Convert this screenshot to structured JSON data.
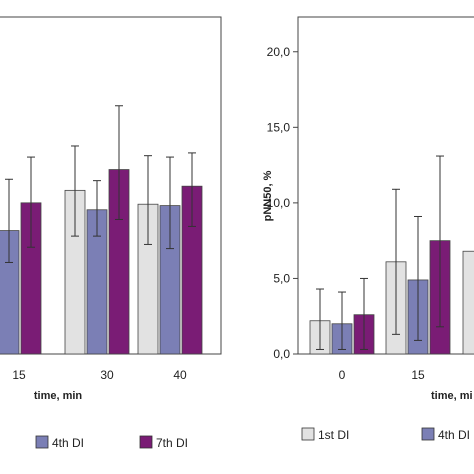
{
  "chart_data": [
    {
      "type": "bar",
      "categories": [
        "15",
        "30",
        "40"
      ],
      "xlabel": "time, min",
      "ylabel": "",
      "series": [
        {
          "name": "",
          "color": "#e2e2e2",
          "values": [
            9.9,
            11.8,
            10.8
          ],
          "err_hi": [
            12.5,
            15.0,
            14.3
          ],
          "err_lo": [
            7.5,
            8.5,
            7.9
          ]
        },
        {
          "name": "4th DI",
          "color": "#7b7fb5",
          "values": [
            8.9,
            10.4,
            10.7
          ],
          "err_hi": [
            12.6,
            12.5,
            14.2
          ],
          "err_lo": [
            6.6,
            8.5,
            7.6
          ]
        },
        {
          "name": "7th DI",
          "color": "#7a1c75",
          "values": [
            10.9,
            13.3,
            12.1
          ],
          "err_hi": [
            14.2,
            17.9,
            14.5
          ],
          "err_lo": [
            7.7,
            9.7,
            9.2
          ]
        }
      ],
      "ylim": [
        0,
        24.3
      ],
      "legend": "bottom"
    },
    {
      "type": "bar",
      "categories": [
        "0",
        "15"
      ],
      "xlabel": "time, mi",
      "ylabel": "pNN50, %",
      "yticks": [
        "0,0",
        "5,0",
        "10,0",
        "15,0",
        "20,0"
      ],
      "ylim": [
        0,
        22.3
      ],
      "series": [
        {
          "name": "1st DI",
          "color": "#e2e2e2",
          "values": [
            2.2,
            6.1
          ],
          "err_hi": [
            4.3,
            10.9
          ],
          "err_lo": [
            0.3,
            1.3
          ]
        },
        {
          "name": "4th DI",
          "color": "#7b7fb5",
          "values": [
            2.0,
            4.9
          ],
          "err_hi": [
            4.1,
            9.1
          ],
          "err_lo": [
            0.3,
            0.9
          ]
        },
        {
          "name": "7th DI",
          "color": "#7a1c75",
          "values": [
            2.6,
            7.5
          ],
          "err_hi": [
            5.0,
            13.1
          ],
          "err_lo": [
            0.3,
            1.8
          ]
        }
      ],
      "partial_bar": {
        "value": 6.8,
        "color": "#e2e2e2"
      },
      "legend": "bottom"
    }
  ]
}
